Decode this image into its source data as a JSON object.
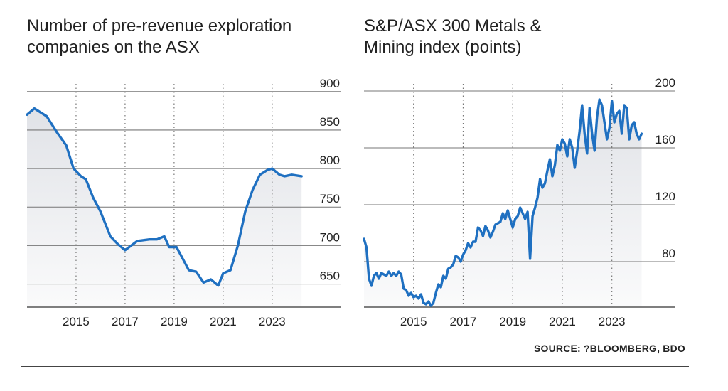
{
  "source": "SOURCE: ?BLOOMBERG, BDO",
  "colors": {
    "line": "#1f70c1",
    "area": "#dfe1e6",
    "grid": "#777777"
  },
  "chart_data": [
    {
      "type": "line",
      "title_lines": [
        "Number of pre-revenue exploration",
        "companies on the ASX"
      ],
      "xlim": [
        2013.0,
        2024.6
      ],
      "ylim": [
        620,
        910
      ],
      "yticks": [
        650,
        700,
        750,
        800,
        850,
        900
      ],
      "xticks": [
        2015,
        2017,
        2019,
        2021,
        2023
      ],
      "grid": true,
      "series": [
        {
          "x": [
            2013.0,
            2013.3,
            2013.8,
            2014.2,
            2014.6,
            2014.9,
            2015.2,
            2015.4,
            2015.7,
            2016.0,
            2016.4,
            2016.7,
            2017.0,
            2017.5,
            2018.0,
            2018.3,
            2018.6,
            2018.8,
            2019.1,
            2019.4,
            2019.6,
            2019.9,
            2020.2,
            2020.5,
            2020.8,
            2021.0,
            2021.3,
            2021.6,
            2021.9,
            2022.2,
            2022.5,
            2022.8,
            2023.0,
            2023.3,
            2023.5,
            2023.8,
            2024.2
          ],
          "y": [
            870,
            878,
            868,
            848,
            830,
            800,
            790,
            786,
            762,
            744,
            712,
            702,
            694,
            706,
            708,
            708,
            712,
            698,
            698,
            680,
            668,
            666,
            652,
            656,
            648,
            664,
            668,
            700,
            744,
            772,
            792,
            798,
            800,
            792,
            790,
            792,
            790
          ]
        }
      ]
    },
    {
      "type": "line",
      "title_lines": [
        "S&P/ASX 300 Metals &",
        "Mining index (points)"
      ],
      "xlim": [
        2013.0,
        2024.3
      ],
      "ylim": [
        48,
        205
      ],
      "yticks": [
        80,
        120,
        160,
        200
      ],
      "xticks": [
        2015,
        2017,
        2019,
        2021,
        2023
      ],
      "grid": true,
      "series": [
        {
          "x": [
            2013.0,
            2013.1,
            2013.2,
            2013.3,
            2013.4,
            2013.5,
            2013.6,
            2013.7,
            2013.8,
            2013.9,
            2014.0,
            2014.1,
            2014.2,
            2014.3,
            2014.4,
            2014.5,
            2014.6,
            2014.7,
            2014.8,
            2014.9,
            2015.0,
            2015.1,
            2015.2,
            2015.3,
            2015.4,
            2015.5,
            2015.6,
            2015.7,
            2015.8,
            2015.9,
            2016.0,
            2016.1,
            2016.2,
            2016.3,
            2016.4,
            2016.5,
            2016.6,
            2016.7,
            2016.8,
            2016.9,
            2017.0,
            2017.1,
            2017.2,
            2017.3,
            2017.4,
            2017.5,
            2017.6,
            2017.7,
            2017.8,
            2017.9,
            2018.0,
            2018.1,
            2018.2,
            2018.3,
            2018.4,
            2018.5,
            2018.6,
            2018.7,
            2018.8,
            2018.9,
            2019.0,
            2019.1,
            2019.2,
            2019.3,
            2019.4,
            2019.5,
            2019.6,
            2019.7,
            2019.8,
            2019.9,
            2020.0,
            2020.1,
            2020.2,
            2020.3,
            2020.4,
            2020.5,
            2020.6,
            2020.7,
            2020.8,
            2020.9,
            2021.0,
            2021.1,
            2021.2,
            2021.3,
            2021.4,
            2021.5,
            2021.6,
            2021.7,
            2021.8,
            2021.9,
            2022.0,
            2022.1,
            2022.2,
            2022.3,
            2022.4,
            2022.5,
            2022.6,
            2022.7,
            2022.8,
            2022.9,
            2023.0,
            2023.1,
            2023.2,
            2023.3,
            2023.4,
            2023.5,
            2023.6,
            2023.7,
            2023.8,
            2023.9,
            2024.0,
            2024.1,
            2024.2
          ],
          "y": [
            96,
            90,
            68,
            63,
            70,
            72,
            68,
            72,
            71,
            70,
            73,
            70,
            72,
            70,
            73,
            71,
            61,
            60,
            56,
            58,
            55,
            56,
            54,
            57,
            51,
            50,
            52,
            49,
            51,
            58,
            64,
            62,
            70,
            68,
            75,
            76,
            78,
            84,
            83,
            80,
            85,
            88,
            93,
            90,
            94,
            94,
            104,
            102,
            98,
            105,
            102,
            97,
            101,
            106,
            107,
            108,
            114,
            110,
            116,
            110,
            104,
            110,
            112,
            118,
            114,
            110,
            115,
            82,
            112,
            118,
            125,
            138,
            132,
            135,
            144,
            152,
            140,
            148,
            162,
            158,
            166,
            163,
            154,
            166,
            160,
            146,
            158,
            172,
            190,
            170,
            156,
            188,
            170,
            158,
            182,
            194,
            190,
            178,
            166,
            174,
            193,
            178,
            184,
            186,
            170,
            190,
            188,
            166,
            176,
            178,
            170,
            166,
            170
          ]
        }
      ]
    }
  ]
}
